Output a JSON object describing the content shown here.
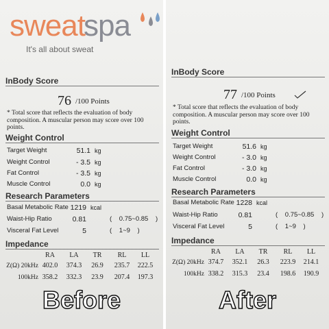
{
  "panels": [
    {
      "logo": {
        "word_a": "sweat",
        "word_b": "spa",
        "tagline": "It's all about sweat"
      },
      "score_title": "InBody Score",
      "score": "76",
      "score_unit": "/100 Points",
      "note": "* Total score that reflects the evaluation of body composition. A muscular person may score over 100 points.",
      "weight_control": {
        "title": "Weight Control",
        "rows": [
          {
            "label": "Target Weight",
            "value": "51.1",
            "unit": "kg"
          },
          {
            "label": "Weight Control",
            "value": "- 3.5",
            "unit": "kg"
          },
          {
            "label": "Fat Control",
            "value": "- 3.5",
            "unit": "kg"
          },
          {
            "label": "Muscle Control",
            "value": "0.0",
            "unit": "kg"
          }
        ]
      },
      "research": {
        "title": "Research Parameters",
        "rows": [
          {
            "label": "Basal Metabolic Rate",
            "value": "1219",
            "unit": "kcal"
          },
          {
            "label": "Waist-Hip Ratio",
            "value": "0.81",
            "range": "( 0.75~0.85 )"
          },
          {
            "label": "Visceral Fat Level",
            "value": "5",
            "range": "( 1~9 )"
          }
        ]
      },
      "impedance": {
        "title": "Impedance",
        "columns": [
          "RA",
          "LA",
          "TR",
          "RL",
          "LL"
        ],
        "rows": [
          {
            "label": "Z(Ω) 20kHz",
            "values": [
              "402.0",
              "374.3",
              "26.9",
              "235.7",
              "222.5"
            ]
          },
          {
            "label": "100kHz",
            "values": [
              "358.2",
              "332.3",
              "23.9",
              "207.4",
              "197.3"
            ]
          }
        ]
      },
      "caption": "Before"
    },
    {
      "score_title": "InBody Score",
      "score": "77",
      "score_unit": "/100 Points",
      "note": "* Total score that reflects the evaluation of body composition. A muscular person may score over 100 points.",
      "weight_control": {
        "title": "Weight Control",
        "rows": [
          {
            "label": "Target Weight",
            "value": "51.6",
            "unit": "kg"
          },
          {
            "label": "Weight Control",
            "value": "- 3.0",
            "unit": "kg"
          },
          {
            "label": "Fat Control",
            "value": "- 3.0",
            "unit": "kg"
          },
          {
            "label": "Muscle Control",
            "value": "0.0",
            "unit": "kg"
          }
        ]
      },
      "research": {
        "title": "Research Parameters",
        "rows": [
          {
            "label": "Basal Metabolic Rate",
            "value": "1228",
            "unit": "kcal"
          },
          {
            "label": "Waist-Hip Ratio",
            "value": "0.81",
            "range": "( 0.75~0.85 )"
          },
          {
            "label": "Visceral Fat Level",
            "value": "5",
            "range": "( 1~9 )"
          }
        ]
      },
      "impedance": {
        "title": "Impedance",
        "columns": [
          "RA",
          "LA",
          "TR",
          "RL",
          "LL"
        ],
        "rows": [
          {
            "label": "Z(Ω) 20kHz",
            "values": [
              "374.7",
              "352.1",
              "26.3",
              "223.9",
              "214.1"
            ]
          },
          {
            "label": "100kHz",
            "values": [
              "338.2",
              "315.3",
              "23.4",
              "198.6",
              "190.9"
            ]
          }
        ]
      },
      "caption": "After"
    }
  ]
}
